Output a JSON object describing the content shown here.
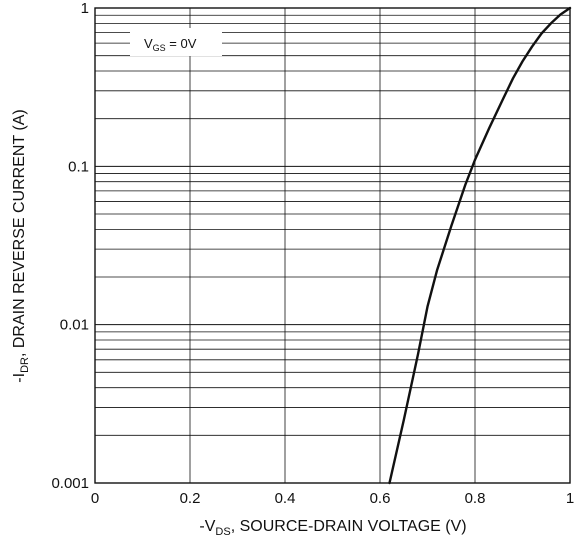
{
  "chart_data": {
    "type": "line",
    "title": "",
    "xlabel": {
      "prefix": "-V",
      "sub": "DS",
      "suffix": ", SOURCE-DRAIN VOLTAGE (V)"
    },
    "ylabel": {
      "prefix": "-I",
      "sub": "DR",
      "suffix": ", DRAIN REVERSE CURRENT (A)"
    },
    "x_scale": "linear",
    "y_scale": "log",
    "xlim": [
      0,
      1
    ],
    "ylim": [
      0.001,
      1
    ],
    "grid": true,
    "x_ticks": [
      0,
      0.2,
      0.4,
      0.6,
      0.8,
      1
    ],
    "x_tick_labels": [
      "0",
      "0.2",
      "0.4",
      "0.6",
      "0.8",
      "1"
    ],
    "y_ticks": [
      0.001,
      0.01,
      0.1,
      1
    ],
    "y_tick_labels": [
      "0.001",
      "0.01",
      "0.1",
      "1"
    ],
    "annotation": {
      "prefix": "V",
      "sub": "GS",
      "suffix": " = 0V"
    },
    "series": [
      {
        "x": [
          0.62,
          0.65,
          0.68,
          0.7,
          0.72,
          0.75,
          0.78,
          0.8,
          0.83,
          0.86,
          0.88,
          0.9,
          0.92,
          0.94,
          0.96,
          0.98,
          1.0
        ],
        "y": [
          0.001,
          0.0025,
          0.0065,
          0.013,
          0.022,
          0.042,
          0.077,
          0.11,
          0.175,
          0.27,
          0.36,
          0.46,
          0.57,
          0.69,
          0.8,
          0.91,
          1.0
        ]
      }
    ]
  }
}
